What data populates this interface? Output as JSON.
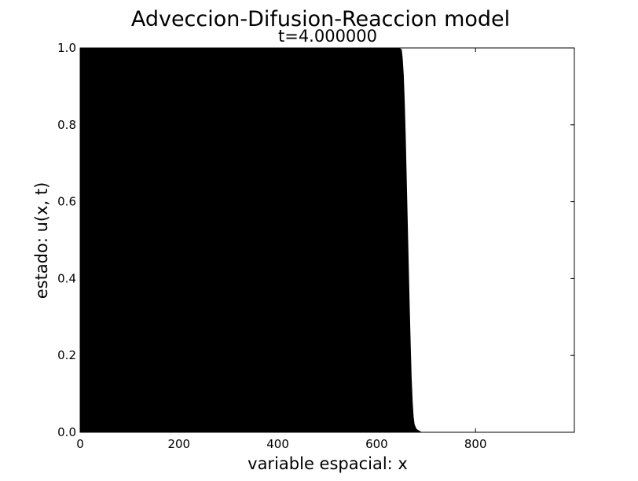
{
  "chart_data": {
    "type": "area",
    "title": "Adveccion-Difusion-Reaccion model",
    "subtitle": "t=4.000000",
    "xlabel": "variable espacial: x",
    "ylabel": "estado: u(x, t)",
    "xlim": [
      0,
      1000
    ],
    "ylim": [
      0,
      1
    ],
    "x_ticks": [
      0,
      200,
      400,
      600,
      800
    ],
    "x_tick_labels": [
      "0",
      "200",
      "400",
      "600",
      "800"
    ],
    "y_ticks": [
      0.0,
      0.2,
      0.4,
      0.6,
      0.8,
      1.0
    ],
    "y_tick_labels": [
      "0.0",
      "0.2",
      "0.4",
      "0.6",
      "0.8",
      "1.0"
    ],
    "grid": false,
    "fill_color": "#000000",
    "x": [
      0,
      645,
      650,
      652,
      654,
      656,
      658,
      660,
      662,
      664,
      666,
      668,
      670,
      672,
      674,
      676,
      680,
      690,
      700,
      800,
      1000
    ],
    "y": [
      1.0,
      1.0,
      0.995,
      0.97,
      0.93,
      0.86,
      0.77,
      0.66,
      0.55,
      0.44,
      0.33,
      0.23,
      0.14,
      0.08,
      0.04,
      0.02,
      0.008,
      0.0,
      0.0,
      0.0,
      0.0
    ]
  }
}
